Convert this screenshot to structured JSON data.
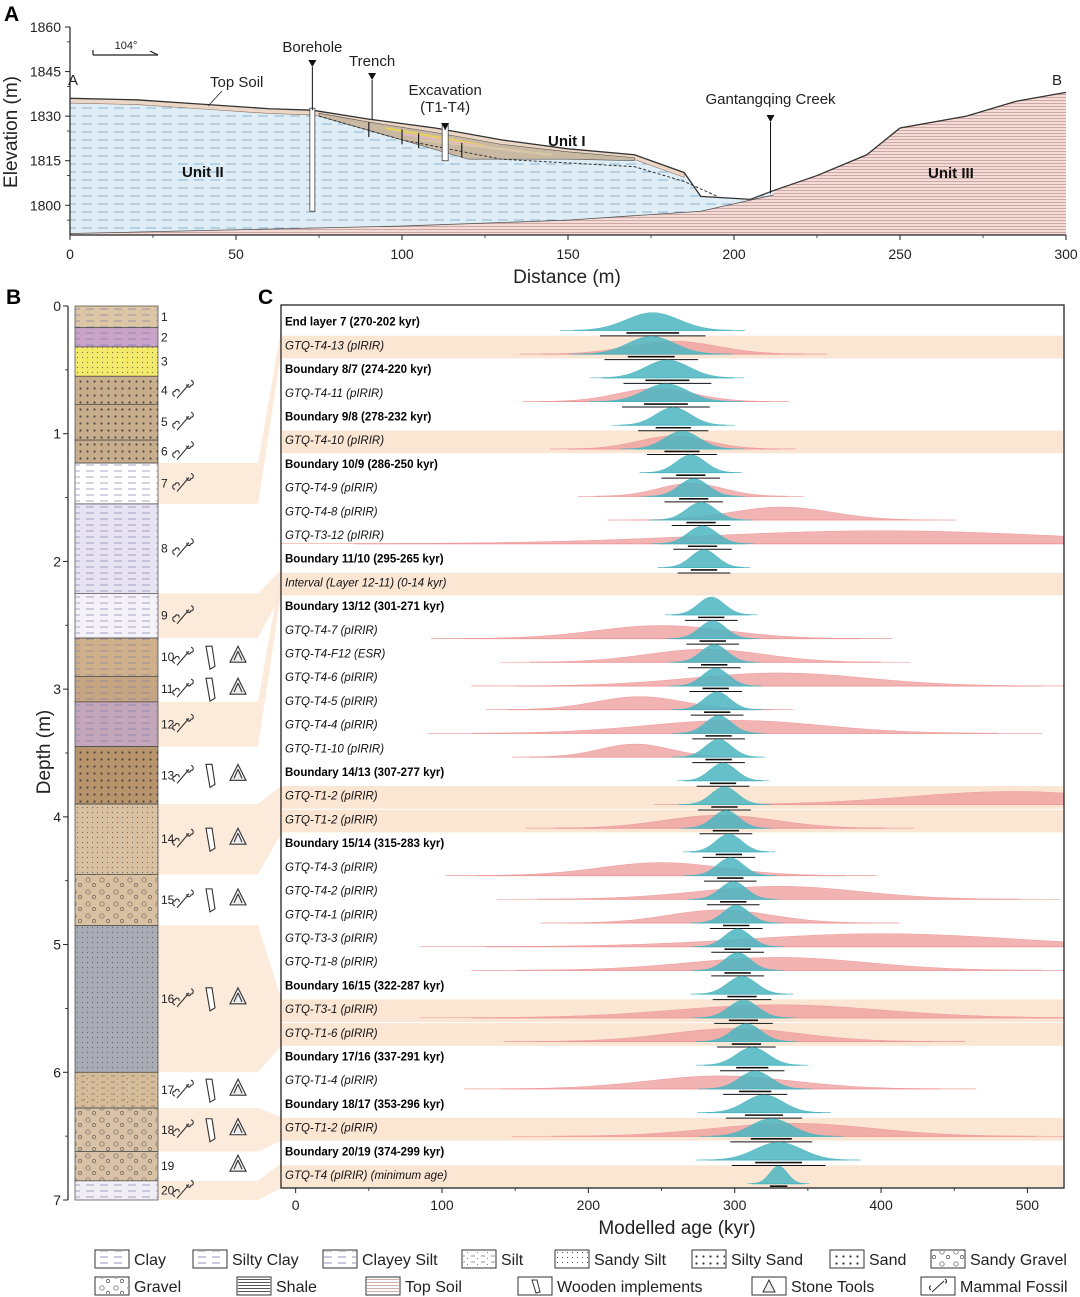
{
  "colors": {
    "blue_curve": "#4bb5c1",
    "red_curve": "#ee9a9a",
    "highlight": "#fbe6d4",
    "unit2_fill": "#dfeef6",
    "unit3_fill": "#f3dcd8"
  },
  "chart_data": [
    {
      "panel": "A",
      "type": "area",
      "xlabel": "Distance (m)",
      "ylabel": "Elevation (m)",
      "xlim": [
        0,
        300
      ],
      "ylim": [
        1790,
        1860
      ],
      "x_ticks": [
        "0",
        "50",
        "100",
        "150",
        "200",
        "250",
        "300"
      ],
      "y_ticks": [
        "1800",
        "1815",
        "1830",
        "1845",
        "1860"
      ],
      "direction": "104°",
      "ends": [
        "A",
        "B"
      ],
      "annotations": [
        {
          "label": "Borehole",
          "x": 73
        },
        {
          "label": "Trench",
          "x": 91
        },
        {
          "label": "Excavation",
          "sub": "(T1-T4)",
          "x": 113
        },
        {
          "label": "Gantangqing Creek",
          "x": 211
        },
        {
          "label": "Top Soil",
          "x": 45
        }
      ],
      "units": [
        "Unit I",
        "Unit II",
        "Unit III"
      ],
      "surface_profile": [
        {
          "x": 0,
          "y": 1836
        },
        {
          "x": 20,
          "y": 1835.5
        },
        {
          "x": 40,
          "y": 1834
        },
        {
          "x": 60,
          "y": 1832.5
        },
        {
          "x": 73,
          "y": 1832
        },
        {
          "x": 90,
          "y": 1829
        },
        {
          "x": 110,
          "y": 1826
        },
        {
          "x": 130,
          "y": 1822
        },
        {
          "x": 150,
          "y": 1819
        },
        {
          "x": 170,
          "y": 1817
        },
        {
          "x": 185,
          "y": 1811
        },
        {
          "x": 190,
          "y": 1803
        },
        {
          "x": 205,
          "y": 1802
        },
        {
          "x": 212,
          "y": 1805
        },
        {
          "x": 225,
          "y": 1810
        },
        {
          "x": 240,
          "y": 1817
        },
        {
          "x": 250,
          "y": 1826
        },
        {
          "x": 270,
          "y": 1830
        },
        {
          "x": 285,
          "y": 1835
        },
        {
          "x": 300,
          "y": 1838
        }
      ]
    },
    {
      "panel": "B",
      "type": "table",
      "ylabel": "Depth (m)",
      "ylim": [
        0,
        7
      ],
      "y_ticks": [
        "0",
        "1",
        "2",
        "3",
        "4",
        "5",
        "6",
        "7"
      ],
      "layers": [
        {
          "n": "1",
          "top": 0.0,
          "bottom": 0.17,
          "lith": "Silty Clay",
          "color": "#dcc6a6",
          "finds": []
        },
        {
          "n": "2",
          "top": 0.17,
          "bottom": 0.32,
          "lith": "Silty Clay",
          "color": "#c9a4c8",
          "finds": []
        },
        {
          "n": "3",
          "top": 0.32,
          "bottom": 0.55,
          "lith": "Sandy Silt",
          "color": "#f3e96a",
          "finds": []
        },
        {
          "n": "4",
          "top": 0.55,
          "bottom": 0.77,
          "lith": "Sand",
          "color": "#c8ad8c",
          "finds": [
            "bone"
          ]
        },
        {
          "n": "5",
          "top": 0.77,
          "bottom": 1.05,
          "lith": "Sand",
          "color": "#c8ad8c",
          "finds": [
            "bone"
          ]
        },
        {
          "n": "6",
          "top": 1.05,
          "bottom": 1.23,
          "lith": "Sand",
          "color": "#c8ad8c",
          "finds": [
            "bone"
          ]
        },
        {
          "n": "7",
          "top": 1.23,
          "bottom": 1.55,
          "lith": "Clay",
          "color": "#ffffff",
          "finds": [
            "bone"
          ]
        },
        {
          "n": "8",
          "top": 1.55,
          "bottom": 2.25,
          "lith": "Clay",
          "color": "#e7e3f3",
          "finds": [
            "bone"
          ]
        },
        {
          "n": "9",
          "top": 2.25,
          "bottom": 2.6,
          "lith": "Clayey Silt",
          "color": "#f4f2f8",
          "finds": [
            "bone"
          ]
        },
        {
          "n": "10",
          "top": 2.6,
          "bottom": 2.9,
          "lith": "Silty Clay",
          "color": "#cfb08a",
          "finds": [
            "bone",
            "wood",
            "stone"
          ]
        },
        {
          "n": "11",
          "top": 2.9,
          "bottom": 3.1,
          "lith": "Silty Clay",
          "color": "#c6a582",
          "finds": [
            "bone",
            "wood",
            "stone"
          ]
        },
        {
          "n": "12",
          "top": 3.1,
          "bottom": 3.45,
          "lith": "Clay",
          "color": "#c4a6ba",
          "finds": [
            "bone"
          ]
        },
        {
          "n": "13",
          "top": 3.45,
          "bottom": 3.9,
          "lith": "Sand",
          "color": "#b8946c",
          "finds": [
            "bone",
            "wood",
            "stone"
          ]
        },
        {
          "n": "14",
          "top": 3.9,
          "bottom": 4.45,
          "lith": "Sandy Silt",
          "color": "#d9c0a0",
          "finds": [
            "bone",
            "wood",
            "stone"
          ]
        },
        {
          "n": "15",
          "top": 4.45,
          "bottom": 4.85,
          "lith": "Sandy Gravel",
          "color": "#d9c0a0",
          "finds": [
            "bone",
            "wood",
            "stone"
          ]
        },
        {
          "n": "16",
          "top": 4.85,
          "bottom": 6.0,
          "lith": "Sandy Silt",
          "color": "#a9abb5",
          "finds": [
            "bone",
            "wood",
            "stone"
          ]
        },
        {
          "n": "17",
          "top": 6.0,
          "bottom": 6.28,
          "lith": "Silt",
          "color": "#d6bc98",
          "finds": [
            "bone",
            "wood",
            "stone"
          ]
        },
        {
          "n": "18",
          "top": 6.28,
          "bottom": 6.62,
          "lith": "Gravel",
          "color": "#d8c1a4",
          "finds": [
            "bone",
            "wood",
            "stone"
          ]
        },
        {
          "n": "19",
          "top": 6.62,
          "bottom": 6.85,
          "lith": "Gravel",
          "color": "#d8c1a4",
          "finds": [
            "stone"
          ]
        },
        {
          "n": "20",
          "top": 6.85,
          "bottom": 7.0,
          "lith": "Clayey Silt",
          "color": "#f0eef4",
          "finds": [
            "bone"
          ]
        }
      ]
    },
    {
      "panel": "C",
      "type": "area",
      "xlabel": "Modelled age (kyr)",
      "xlim": [
        -10,
        525
      ],
      "x_ticks": [
        "0",
        "100",
        "200",
        "300",
        "400",
        "500"
      ],
      "rows": [
        {
          "label": "End layer 7 (270-202 kyr)",
          "kind": "boundary",
          "hl": false,
          "post": [
            244,
            18
          ],
          "like": null
        },
        {
          "label": "GTQ-T4-13 (pIRIR)",
          "kind": "sample",
          "hl": true,
          "post": [
            243,
            16
          ],
          "like": [
            258,
            30
          ]
        },
        {
          "label": "Boundary 8/7 (274-220 kyr)",
          "kind": "boundary",
          "hl": false,
          "post": [
            254,
            15
          ],
          "like": null
        },
        {
          "label": "GTQ-T4-11 (pIRIR)",
          "kind": "sample",
          "hl": false,
          "post": [
            253,
            15
          ],
          "like": [
            246,
            26
          ]
        },
        {
          "label": "Boundary 9/8 (278-232 kyr)",
          "kind": "boundary",
          "hl": false,
          "post": [
            258,
            12
          ],
          "like": null
        },
        {
          "label": "GTQ-T4-10 (pIRIR)",
          "kind": "sample",
          "hl": true,
          "post": [
            264,
            12
          ],
          "like": [
            258,
            24
          ]
        },
        {
          "label": "Boundary 10/9 (286-250 kyr)",
          "kind": "boundary",
          "hl": false,
          "post": [
            270,
            10
          ],
          "like": null
        },
        {
          "label": "GTQ-T4-9 (pIRIR)",
          "kind": "sample",
          "hl": false,
          "post": [
            272,
            10
          ],
          "like": [
            270,
            22
          ]
        },
        {
          "label": "GTQ-T4-8 (pIRIR)",
          "kind": "sample",
          "hl": false,
          "post": [
            277,
            10
          ],
          "like": [
            332,
            34
          ]
        },
        {
          "label": "GTQ-T3-12 (pIRIR)",
          "kind": "sample",
          "hl": false,
          "post": [
            278,
            10
          ],
          "like": [
            400,
            120
          ]
        },
        {
          "label": "Boundary 11/10 (295-265 kyr)",
          "kind": "boundary",
          "hl": false,
          "post": [
            279,
            9
          ],
          "like": null
        },
        {
          "label": "Interval (Layer 12-11) (0-14 kyr)",
          "kind": "interval",
          "hl": true,
          "post": null,
          "like": null
        },
        {
          "label": "Boundary 13/12 (301-271 kyr)",
          "kind": "boundary",
          "hl": false,
          "post": [
            284,
            9
          ],
          "like": null
        },
        {
          "label": "GTQ-T4-7 (pIRIR)",
          "kind": "sample",
          "hl": false,
          "post": [
            285,
            9
          ],
          "like": [
            250,
            45
          ]
        },
        {
          "label": "GTQ-T4-F12 (ESR)",
          "kind": "sample",
          "hl": false,
          "post": [
            286,
            9
          ],
          "like": [
            280,
            40
          ]
        },
        {
          "label": "GTQ-T4-6 (pIRIR)",
          "kind": "sample",
          "hl": false,
          "post": [
            287,
            9
          ],
          "like": [
            330,
            60
          ]
        },
        {
          "label": "GTQ-T4-5 (pIRIR)",
          "kind": "sample",
          "hl": false,
          "post": [
            288,
            9
          ],
          "like": [
            235,
            30
          ]
        },
        {
          "label": "GTQ-T4-4 (pIRIR)",
          "kind": "sample",
          "hl": false,
          "post": [
            289,
            9
          ],
          "like": [
            300,
            60
          ]
        },
        {
          "label": "GTQ-T1-10 (pIRIR)",
          "kind": "sample",
          "hl": false,
          "post": [
            289,
            9
          ],
          "like": [
            232,
            24
          ]
        },
        {
          "label": "Boundary 14/13 (307-277 kyr)",
          "kind": "boundary",
          "hl": false,
          "post": [
            292,
            9
          ],
          "like": null
        },
        {
          "label": "GTQ-T1-2 (pIRIR)",
          "kind": "sample",
          "hl": true,
          "post": [
            293,
            9
          ],
          "like": [
            490,
            70
          ]
        },
        {
          "label": "GTQ-T1-2 (pIRIR)",
          "kind": "sample",
          "hl": true,
          "post": [
            294,
            9
          ],
          "like": [
            290,
            38
          ]
        },
        {
          "label": "Boundary 15/14 (315-283 kyr)",
          "kind": "boundary",
          "hl": false,
          "post": [
            296,
            9
          ],
          "like": null
        },
        {
          "label": "GTQ-T4-3 (pIRIR)",
          "kind": "sample",
          "hl": false,
          "post": [
            297,
            9
          ],
          "like": [
            250,
            42
          ]
        },
        {
          "label": "GTQ-T4-2 (pIRIR)",
          "kind": "sample",
          "hl": false,
          "post": [
            299,
            9
          ],
          "like": [
            330,
            55
          ]
        },
        {
          "label": "GTQ-T4-1 (pIRIR)",
          "kind": "sample",
          "hl": false,
          "post": [
            301,
            9
          ],
          "like": [
            290,
            35
          ]
        },
        {
          "label": "GTQ-T3-3 (pIRIR)",
          "kind": "sample",
          "hl": false,
          "post": [
            302,
            9
          ],
          "like": [
            400,
            90
          ]
        },
        {
          "label": "GTQ-T1-8 (pIRIR)",
          "kind": "sample",
          "hl": false,
          "post": [
            302,
            9
          ],
          "like": [
            330,
            60
          ]
        },
        {
          "label": "Boundary 16/15 (322-287 kyr)",
          "kind": "boundary",
          "hl": false,
          "post": [
            305,
            10
          ],
          "like": null
        },
        {
          "label": "GTQ-T3-1 (pIRIR)",
          "kind": "sample",
          "hl": true,
          "post": [
            306,
            10
          ],
          "like": [
            330,
            70
          ]
        },
        {
          "label": "GTQ-T1-6 (pIRIR)",
          "kind": "sample",
          "hl": true,
          "post": [
            308,
            10
          ],
          "like": [
            300,
            45
          ]
        },
        {
          "label": "Boundary 17/16 (337-291 kyr)",
          "kind": "boundary",
          "hl": false,
          "post": [
            312,
            11
          ],
          "like": null
        },
        {
          "label": "GTQ-T1-4 (pIRIR)",
          "kind": "sample",
          "hl": false,
          "post": [
            314,
            11
          ],
          "like": [
            290,
            50
          ]
        },
        {
          "label": "Boundary 18/17 (353-296 kyr)",
          "kind": "boundary",
          "hl": false,
          "post": [
            320,
            13
          ],
          "like": null
        },
        {
          "label": "GTQ-T1-2 (pIRIR)",
          "kind": "sample",
          "hl": true,
          "post": [
            325,
            14
          ],
          "like": [
            340,
            55
          ]
        },
        {
          "label": "Boundary 20/19 (374-299 kyr)",
          "kind": "boundary",
          "hl": false,
          "post": [
            330,
            16
          ],
          "like": null
        },
        {
          "label": "GTQ-T4 (pIRIR) (minimum age)",
          "kind": "sample",
          "hl": true,
          "post": [
            330,
            6
          ],
          "like": null
        }
      ]
    }
  ],
  "legend": [
    {
      "label": "Clay",
      "icon": "clay-swatch"
    },
    {
      "label": "Silty Clay",
      "icon": "silty-clay-swatch"
    },
    {
      "label": "Clayey Silt",
      "icon": "clayey-silt-swatch"
    },
    {
      "label": "Silt",
      "icon": "silt-swatch"
    },
    {
      "label": "Sandy Silt",
      "icon": "sandy-silt-swatch"
    },
    {
      "label": "Silty Sand",
      "icon": "silty-sand-swatch"
    },
    {
      "label": "Sand",
      "icon": "sand-swatch"
    },
    {
      "label": "Sandy Gravel",
      "icon": "sandy-gravel-swatch"
    },
    {
      "label": "Gravel",
      "icon": "gravel-swatch"
    },
    {
      "label": "Shale",
      "icon": "shale-swatch"
    },
    {
      "label": "Top Soil",
      "icon": "top-soil-swatch"
    },
    {
      "label": "Wooden implements",
      "icon": "wooden-implement-icon"
    },
    {
      "label": "Stone Tools",
      "icon": "stone-tool-icon"
    },
    {
      "label": "Mammal Fossil",
      "icon": "mammal-fossil-icon"
    }
  ]
}
